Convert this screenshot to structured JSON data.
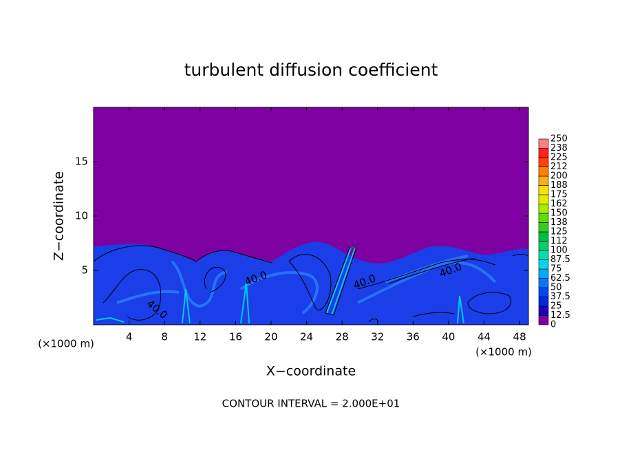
{
  "chart_data": {
    "type": "contour",
    "title": "turbulent diffusion coefficient",
    "x_label": "X−coordinate",
    "y_label": "Z−coordinate",
    "x_unit_label": "(×1000 m)",
    "y_unit_label": "(×1000 m)",
    "footnote": "CONTOUR INTERVAL = 2.000E+01",
    "background_color": "#7f00a0",
    "xlim": [
      0,
      49
    ],
    "xticks": [
      4,
      8,
      12,
      16,
      20,
      24,
      28,
      32,
      36,
      40,
      44,
      48
    ],
    "ylim": [
      0,
      20
    ],
    "yticks": [
      5,
      10,
      15
    ],
    "contour_labels": [
      "40.0",
      "40.0",
      "40.0",
      "40.0"
    ],
    "colorbar": {
      "levels": [
        0,
        12.5,
        25,
        37.5,
        50,
        62.5,
        75,
        87.5,
        100,
        {
          "value": 112.5,
          "label": "112"
        },
        125,
        {
          "value": 137.5,
          "label": "138"
        },
        150,
        {
          "value": 162.5,
          "label": "162"
        },
        175,
        {
          "value": 187.5,
          "label": "188"
        },
        200,
        {
          "value": 212.5,
          "label": "212"
        },
        225,
        {
          "value": 237.5,
          "label": "238"
        },
        250
      ],
      "colors": [
        "#7f00a0",
        "#2000c0",
        "#0028d8",
        "#0048f0",
        "#0078ff",
        "#00a8ff",
        "#00d8f0",
        "#00e0b0",
        "#00d070",
        "#00c040",
        "#30d020",
        "#60e000",
        "#a0f000",
        "#e0f000",
        "#ffe000",
        "#ffb000",
        "#ff8000",
        "#ff4000",
        "#ff2020",
        "#ff8080"
      ]
    }
  }
}
